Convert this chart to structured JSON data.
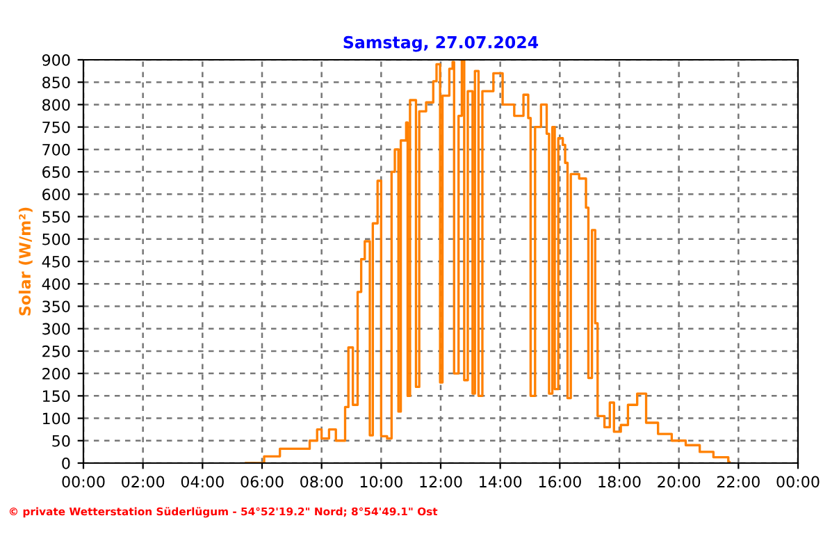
{
  "chart_data": {
    "type": "step",
    "title": "Samstag, 27.07.2024",
    "ylabel": "Solar (W/m²)",
    "annotations": [
      "© private Wetterstation Süderlügum - 54°52'19.2\" Nord; 8°54'49.1\" Ost"
    ],
    "x": [
      5.46,
      6.07,
      6.6,
      7.6,
      7.85,
      8.0,
      8.25,
      8.48,
      8.79,
      8.9,
      9.05,
      9.21,
      9.33,
      9.45,
      9.62,
      9.72,
      9.88,
      10.0,
      10.2,
      10.35,
      10.46,
      10.58,
      10.66,
      10.84,
      10.89,
      10.97,
      11.17,
      11.28,
      11.51,
      11.75,
      11.86,
      11.98,
      12.06,
      12.29,
      12.4,
      12.45,
      12.6,
      12.71,
      12.79,
      12.91,
      13.07,
      13.15,
      13.27,
      13.4,
      13.77,
      14.08,
      14.47,
      14.78,
      14.94,
      15.02,
      15.17,
      15.37,
      15.56,
      15.64,
      15.75,
      15.83,
      15.95,
      16.1,
      16.18,
      16.26,
      16.37,
      16.65,
      16.88,
      16.96,
      17.08,
      17.19,
      17.27,
      17.5,
      17.68,
      17.82,
      18.05,
      18.29,
      18.6,
      18.9,
      19.3,
      19.76,
      20.23,
      20.7,
      21.16,
      21.66,
      21.7
    ],
    "series": [
      {
        "color": "#ff8000",
        "values": [
          0,
          15,
          32,
          50,
          75,
          55,
          75,
          50,
          125,
          258,
          130,
          382,
          455,
          495,
          62,
          535,
          630,
          60,
          55,
          650,
          700,
          115,
          720,
          760,
          150,
          810,
          170,
          785,
          805,
          852,
          890,
          180,
          820,
          880,
          895,
          200,
          775,
          900,
          185,
          830,
          155,
          875,
          150,
          830,
          870,
          800,
          775,
          822,
          770,
          150,
          750,
          800,
          735,
          155,
          750,
          165,
          725,
          710,
          670,
          145,
          645,
          635,
          570,
          190,
          520,
          312,
          105,
          80,
          135,
          70,
          85,
          130,
          155,
          90,
          65,
          50,
          40,
          25,
          13,
          3,
          0
        ]
      }
    ],
    "xlim": [
      0,
      24
    ],
    "xticks": [
      {
        "value": 0,
        "label": "00:00"
      },
      {
        "value": 2,
        "label": "02:00"
      },
      {
        "value": 4,
        "label": "04:00"
      },
      {
        "value": 6,
        "label": "06:00"
      },
      {
        "value": 8,
        "label": "08:00"
      },
      {
        "value": 10,
        "label": "10:00"
      },
      {
        "value": 12,
        "label": "12:00"
      },
      {
        "value": 14,
        "label": "14:00"
      },
      {
        "value": 16,
        "label": "16:00"
      },
      {
        "value": 18,
        "label": "18:00"
      },
      {
        "value": 20,
        "label": "20:00"
      },
      {
        "value": 22,
        "label": "22:00"
      },
      {
        "value": 24,
        "label": "00:00"
      }
    ],
    "ylim": [
      0,
      900
    ],
    "yticks": [
      0,
      50,
      100,
      150,
      200,
      250,
      300,
      350,
      400,
      450,
      500,
      550,
      600,
      650,
      700,
      750,
      800,
      850,
      900
    ],
    "grid": true,
    "line_style": "solid",
    "marker": "none",
    "legend": false
  }
}
